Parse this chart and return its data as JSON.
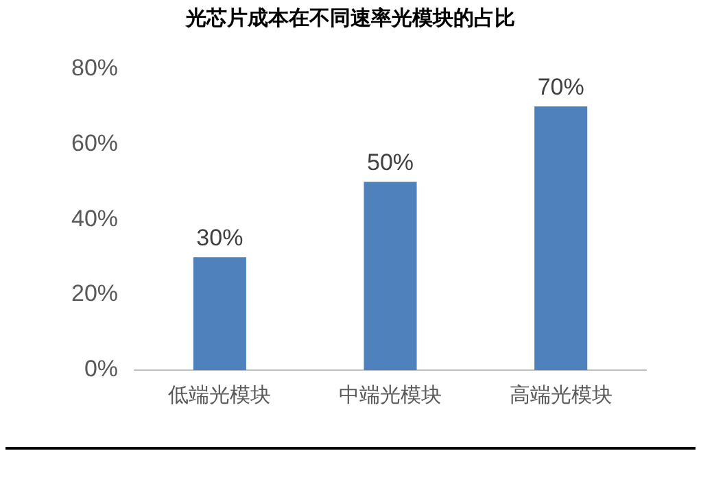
{
  "chart_data": {
    "type": "bar",
    "title": "光芯片成本在不同速率光模块的占比",
    "categories": [
      "低端光模块",
      "中端光模块",
      "高端光模块"
    ],
    "values": [
      30,
      50,
      70
    ],
    "color": "#4f81bd",
    "value_labels": [
      "30%",
      "50%",
      "70%"
    ],
    "ylim": [
      0,
      80
    ],
    "yticks": [
      {
        "value": 0,
        "label": "0%"
      },
      {
        "value": 20,
        "label": "20%"
      },
      {
        "value": 40,
        "label": "40%"
      },
      {
        "value": 60,
        "label": "60%"
      },
      {
        "value": 80,
        "label": "80%"
      }
    ],
    "grid": false,
    "legend": false
  }
}
